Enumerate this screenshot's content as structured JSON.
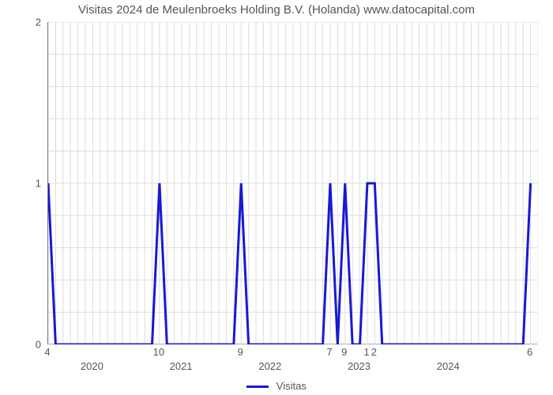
{
  "chart": {
    "type": "line",
    "title": "Visitas 2024 de Meulenbroeks Holding B.V. (Holanda) www.datocapital.com",
    "title_fontsize": 15,
    "title_color": "#555555",
    "background_color": "#ffffff",
    "plot_border_color": "#777777",
    "grid_color": "#dddddd",
    "label_color": "#555555",
    "label_fontsize": 13,
    "x": {
      "min": 0,
      "max": 66,
      "major_ticks": [
        6,
        18,
        30,
        42,
        54
      ],
      "major_labels": [
        "2020",
        "2021",
        "2022",
        "2023",
        "2024"
      ],
      "minor_step": 1
    },
    "y": {
      "min": 0,
      "max": 2,
      "ticks": [
        0,
        1,
        2
      ],
      "labels": [
        "0",
        "1",
        "2"
      ],
      "minor_count_between": 4
    },
    "series": {
      "name": "Visitas",
      "color": "#1818d6",
      "line_width": 3,
      "x": [
        0,
        1,
        2,
        3,
        4,
        5,
        6,
        7,
        8,
        9,
        10,
        11,
        12,
        13,
        14,
        15,
        16,
        17,
        18,
        19,
        20,
        21,
        22,
        23,
        24,
        25,
        26,
        27,
        28,
        29,
        30,
        31,
        32,
        33,
        34,
        35,
        36,
        37,
        38,
        39,
        40,
        41,
        42,
        43,
        44,
        45,
        46,
        47,
        48,
        49,
        50,
        51,
        52,
        53,
        54,
        55,
        56,
        57,
        58,
        59,
        60,
        61,
        62,
        63,
        64,
        65
      ],
      "y": [
        4,
        0,
        0,
        0,
        0,
        0,
        0,
        0,
        0,
        0,
        0,
        0,
        0,
        0,
        0,
        10,
        0,
        0,
        0,
        0,
        0,
        0,
        0,
        0,
        0,
        0,
        9,
        0,
        0,
        0,
        0,
        0,
        0,
        0,
        0,
        0,
        0,
        0,
        7,
        0,
        9,
        0,
        0,
        1,
        2,
        0,
        0,
        0,
        0,
        0,
        0,
        0,
        0,
        0,
        0,
        0,
        0,
        0,
        0,
        0,
        0,
        0,
        0,
        0,
        0,
        6
      ],
      "value_labels": [
        {
          "x": 0,
          "text": "4"
        },
        {
          "x": 15,
          "text": "10"
        },
        {
          "x": 26,
          "text": "9"
        },
        {
          "x": 38,
          "text": "7"
        },
        {
          "x": 40,
          "text": "9"
        },
        {
          "x": 43,
          "text": "1"
        },
        {
          "x": 44,
          "text": "2"
        },
        {
          "x": 65,
          "text": "6"
        }
      ],
      "y_plot_cap": 1
    },
    "legend": {
      "label": "Visitas"
    }
  }
}
